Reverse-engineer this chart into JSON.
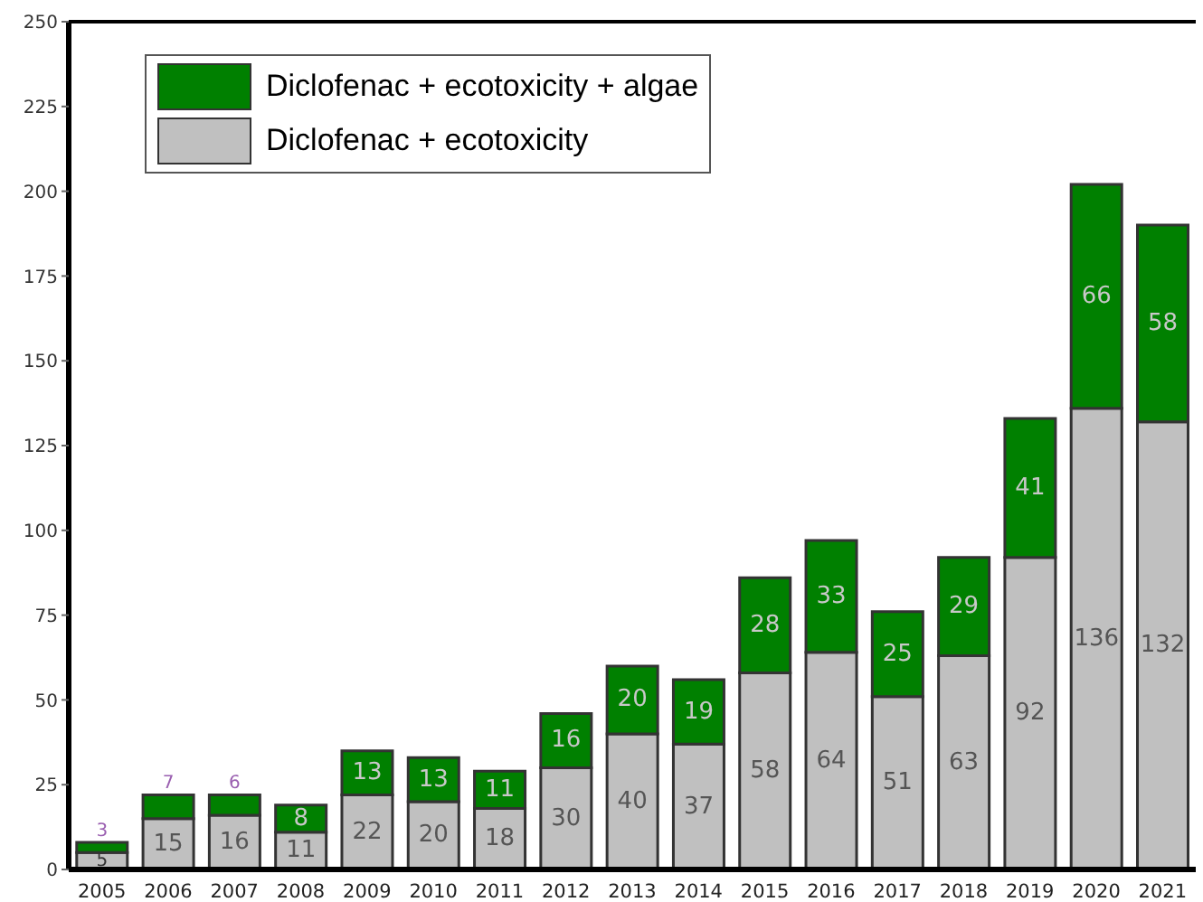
{
  "chart_data": {
    "type": "bar",
    "stacked": true,
    "categories": [
      "2005",
      "2006",
      "2007",
      "2008",
      "2009",
      "2010",
      "2011",
      "2012",
      "2013",
      "2014",
      "2015",
      "2016",
      "2017",
      "2018",
      "2019",
      "2020",
      "2021"
    ],
    "series": [
      {
        "name": "Diclofenac + ecotoxicity",
        "color": "#c0c0c0",
        "values": [
          5,
          15,
          16,
          11,
          22,
          20,
          18,
          30,
          40,
          37,
          58,
          64,
          51,
          63,
          92,
          136,
          132
        ]
      },
      {
        "name": "Diclofenac + ecotoxicity + algae",
        "color": "#008000",
        "values": [
          3,
          7,
          6,
          8,
          13,
          13,
          11,
          16,
          20,
          19,
          28,
          33,
          25,
          29,
          41,
          66,
          58
        ]
      }
    ],
    "ylim": [
      0,
      250
    ],
    "yticks": [
      0,
      25,
      50,
      75,
      100,
      125,
      150,
      175,
      200,
      225,
      250
    ],
    "grid": false,
    "legend": "top left",
    "data_labels": true
  }
}
